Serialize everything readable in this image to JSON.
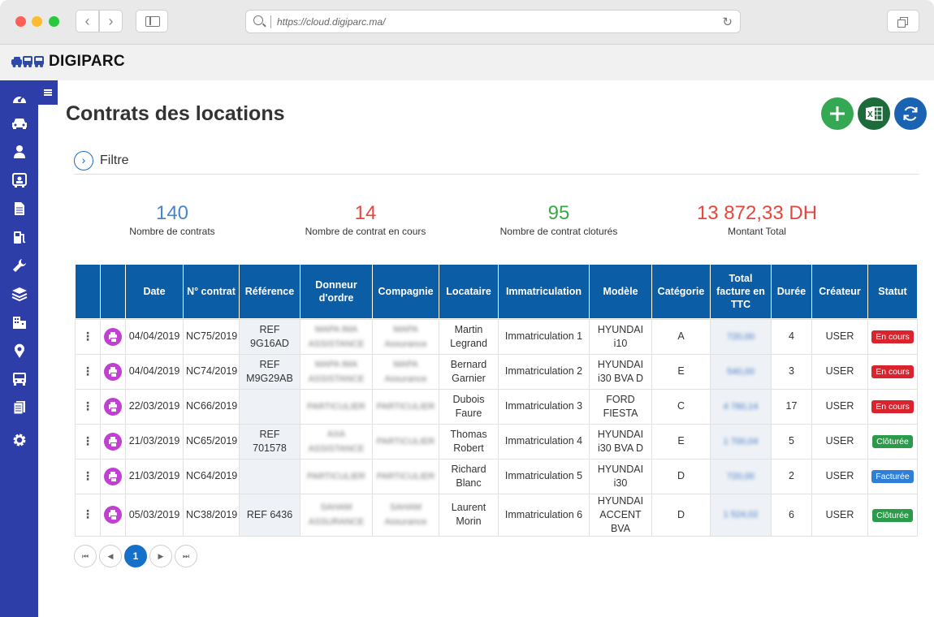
{
  "browser": {
    "url": "https://cloud.digiparc.ma/"
  },
  "app": {
    "name": "DIGIPARC"
  },
  "sidebar": {
    "items": [
      {
        "icon": "dashboard-icon"
      },
      {
        "icon": "car-icon"
      },
      {
        "icon": "user-icon"
      },
      {
        "icon": "driver-icon"
      },
      {
        "icon": "document-icon"
      },
      {
        "icon": "fuel-icon"
      },
      {
        "icon": "wrench-icon"
      },
      {
        "icon": "layers-icon"
      },
      {
        "icon": "building-icon"
      },
      {
        "icon": "location-icon"
      },
      {
        "icon": "bus-icon"
      },
      {
        "icon": "documents-icon"
      },
      {
        "icon": "gear-icon"
      }
    ]
  },
  "page": {
    "title": "Contrats des locations",
    "filter_label": "Filtre"
  },
  "stats": [
    {
      "value": "140",
      "label": "Nombre de contrats",
      "color": "#4a86c5"
    },
    {
      "value": "14",
      "label": "Nombre de contrat en cours",
      "color": "#e5473d"
    },
    {
      "value": "95",
      "label": "Nombre de contrat cloturés",
      "color": "#3aa84a"
    },
    {
      "value": "13 872,33 DH",
      "label": "Montant Total",
      "color": "#e5473d"
    }
  ],
  "table": {
    "headers": [
      "",
      "",
      "Date",
      "N° contrat",
      "Référence",
      "Donneur d'ordre",
      "Compagnie",
      "Locataire",
      "Immatriculation",
      "Modèle",
      "Catégorie",
      "Total facture en TTC",
      "Durée",
      "Créateur",
      "Statut"
    ],
    "rows": [
      {
        "date": "04/04/2019",
        "num": "NC75/2019",
        "ref": "REF 9G16AD",
        "donneur": "MAPA IMA ASSISTANCE",
        "compagnie": "MAPA Assurance",
        "locataire": "Martin Legrand",
        "immat": "Immatriculation 1",
        "modele": "HYUNDAI i10",
        "categorie": "A",
        "total": "720,00",
        "duree": "4",
        "createur": "USER",
        "statut": "En cours",
        "statut_color": "#d9232d"
      },
      {
        "date": "04/04/2019",
        "num": "NC74/2019",
        "ref": "REF M9G29AB",
        "donneur": "MAPA IMA ASSISTANCE",
        "compagnie": "MAPA Assurance",
        "locataire": "Bernard Garnier",
        "immat": "Immatriculation 2",
        "modele": "HYUNDAI i30 BVA D",
        "categorie": "E",
        "total": "540,00",
        "duree": "3",
        "createur": "USER",
        "statut": "En cours",
        "statut_color": "#d9232d"
      },
      {
        "date": "22/03/2019",
        "num": "NC66/2019",
        "ref": "",
        "donneur": "PARTICULIER",
        "compagnie": "PARTICULIER",
        "locataire": "Dubois Faure",
        "immat": "Immatriculation 3",
        "modele": "FORD FIESTA",
        "categorie": "C",
        "total": "4 760,14",
        "duree": "17",
        "createur": "USER",
        "statut": "En cours",
        "statut_color": "#d9232d"
      },
      {
        "date": "21/03/2019",
        "num": "NC65/2019",
        "ref": "REF 701578",
        "donneur": "AXA ASSISTANCE",
        "compagnie": "PARTICULIER",
        "locataire": "Thomas Robert",
        "immat": "Immatriculation 4",
        "modele": "HYUNDAI i30 BVA D",
        "categorie": "E",
        "total": "1 700,04",
        "duree": "5",
        "createur": "USER",
        "statut": "Clôturée",
        "statut_color": "#2b9a4a"
      },
      {
        "date": "21/03/2019",
        "num": "NC64/2019",
        "ref": "",
        "donneur": "PARTICULIER",
        "compagnie": "PARTICULIER",
        "locataire": "Richard Blanc",
        "immat": "Immatriculation 5",
        "modele": "HYUNDAI i30",
        "categorie": "D",
        "total": "720,00",
        "duree": "2",
        "createur": "USER",
        "statut": "Facturée",
        "statut_color": "#2f7fd8"
      },
      {
        "date": "05/03/2019",
        "num": "NC38/2019",
        "ref": "REF 6436",
        "donneur": "SAHAM ASSURANCE",
        "compagnie": "SAHAM Assurance",
        "locataire": "Laurent Morin",
        "immat": "Immatriculation 6",
        "modele": "HYUNDAI ACCENT BVA",
        "categorie": "D",
        "total": "1 524,02",
        "duree": "6",
        "createur": "USER",
        "statut": "Clôturée",
        "statut_color": "#2b9a4a"
      }
    ]
  },
  "pagination": {
    "current": "1",
    "first": "⏮",
    "prev": "◀",
    "next": "▶",
    "last": "⏭"
  }
}
